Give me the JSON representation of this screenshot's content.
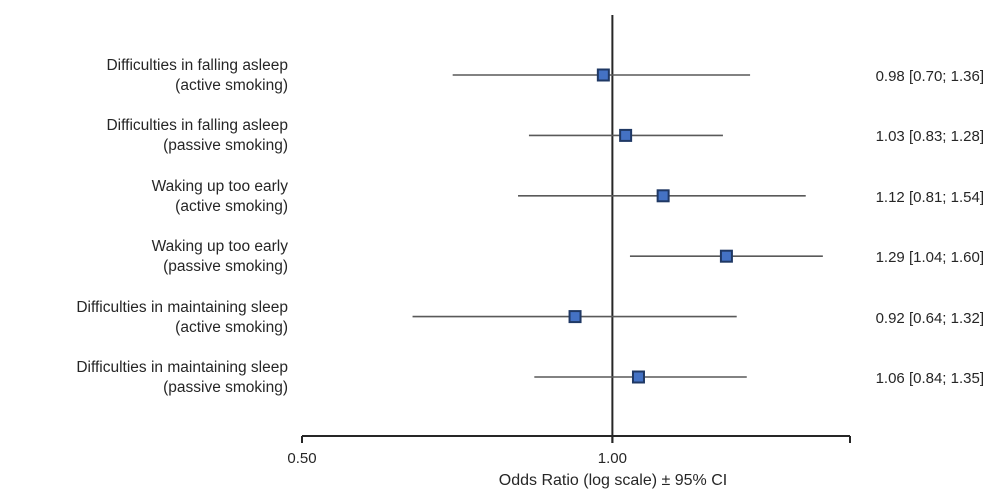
{
  "chart_data": {
    "type": "forest",
    "title": "",
    "xlabel": "Odds Ratio (log scale) ± 95% CI",
    "x_scale": "log",
    "x_axis_range": [
      0.5,
      1.7
    ],
    "x_ticks": [
      {
        "value": 0.5,
        "label": "0.50"
      },
      {
        "value": 1.0,
        "label": "1.00"
      }
    ],
    "reference_line": 1.0,
    "rows": [
      {
        "label": "Difficulties in falling asleep",
        "subgroup": "(active smoking)",
        "or": 0.98,
        "ci_low": 0.7,
        "ci_high": 1.36,
        "value_text": "0.98 [0.70; 1.36]"
      },
      {
        "label": "Difficulties in falling asleep",
        "subgroup": "(passive smoking)",
        "or": 1.03,
        "ci_low": 0.83,
        "ci_high": 1.28,
        "value_text": "1.03 [0.83; 1.28]"
      },
      {
        "label": "Waking up too early",
        "subgroup": "(active smoking)",
        "or": 1.12,
        "ci_low": 0.81,
        "ci_high": 1.54,
        "value_text": "1.12 [0.81; 1.54]"
      },
      {
        "label": "Waking up too early",
        "subgroup": "(passive smoking)",
        "or": 1.29,
        "ci_low": 1.04,
        "ci_high": 1.6,
        "value_text": "1.29 [1.04; 1.60]"
      },
      {
        "label": "Difficulties in maintaining sleep",
        "subgroup": "(active smoking)",
        "or": 0.92,
        "ci_low": 0.64,
        "ci_high": 1.32,
        "value_text": "0.92 [0.64; 1.32]"
      },
      {
        "label": "Difficulties in maintaining sleep",
        "subgroup": "(passive smoking)",
        "or": 1.06,
        "ci_low": 0.84,
        "ci_high": 1.35,
        "value_text": "1.06 [0.84; 1.35]"
      }
    ]
  },
  "style": {
    "marker_fill": "#4472C4",
    "marker_border": "#1F3864",
    "ci_line_color": "#595959",
    "axis_color": "#262626",
    "text_color": "#262626",
    "background": "#ffffff"
  }
}
